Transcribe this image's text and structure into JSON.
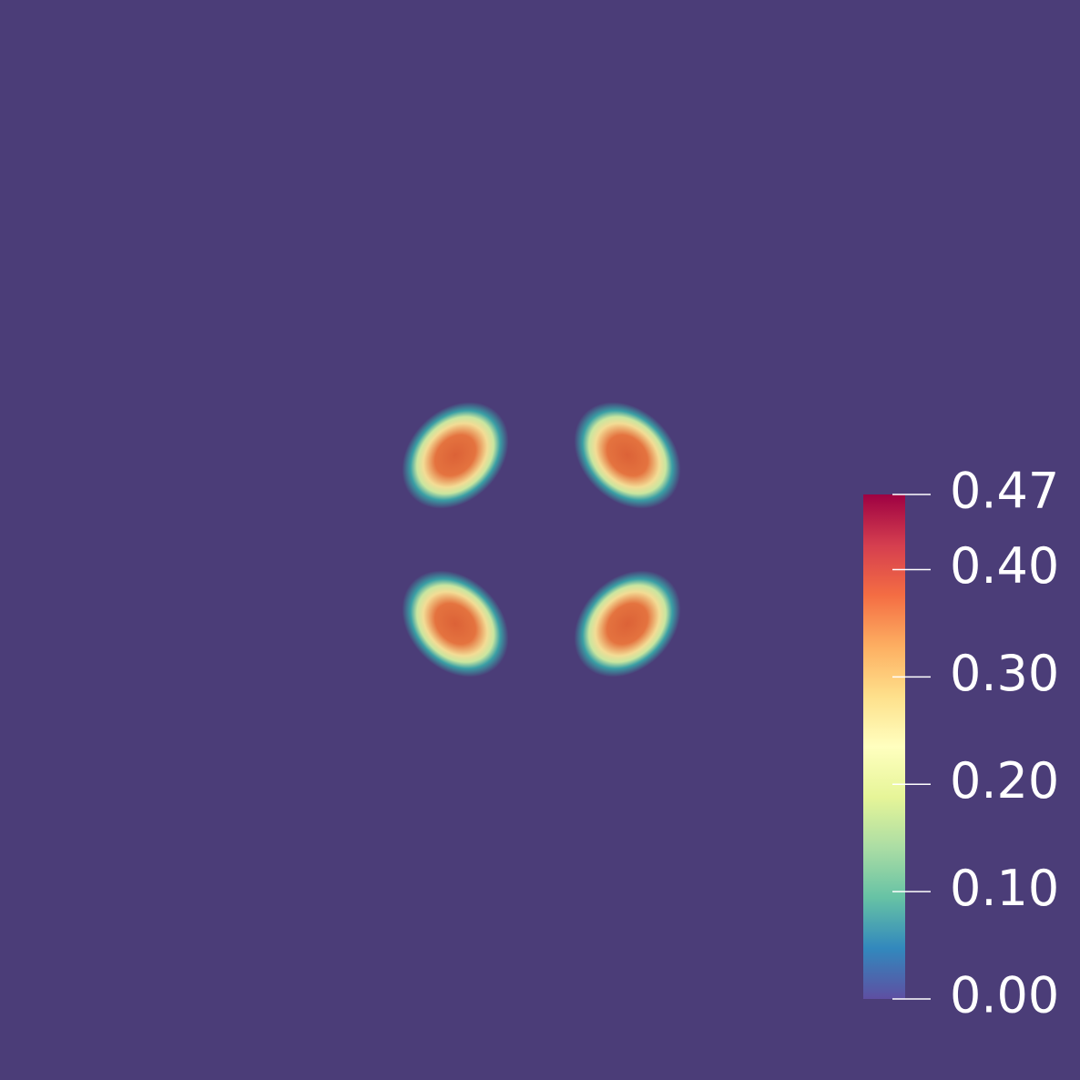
{
  "colorbar": {
    "range": [
      0,
      0.47
    ],
    "ticks": [
      {
        "value": 0,
        "label": "0.00"
      },
      {
        "value": 0.1,
        "label": "0.10"
      },
      {
        "value": 0.2,
        "label": "0.20"
      },
      {
        "value": 0.3,
        "label": "0.30"
      },
      {
        "value": 0.4,
        "label": "0.40"
      },
      0.47
    ],
    "colors": [
      "#5e4fa2",
      "#3288bd",
      "#66c2a5",
      "#abdda4",
      "#e6f598",
      "#ffffbf",
      "#fee08b",
      "#fdae61",
      "#f46d43",
      "#d53e4f",
      "#9e0142"
    ]
  }
}
